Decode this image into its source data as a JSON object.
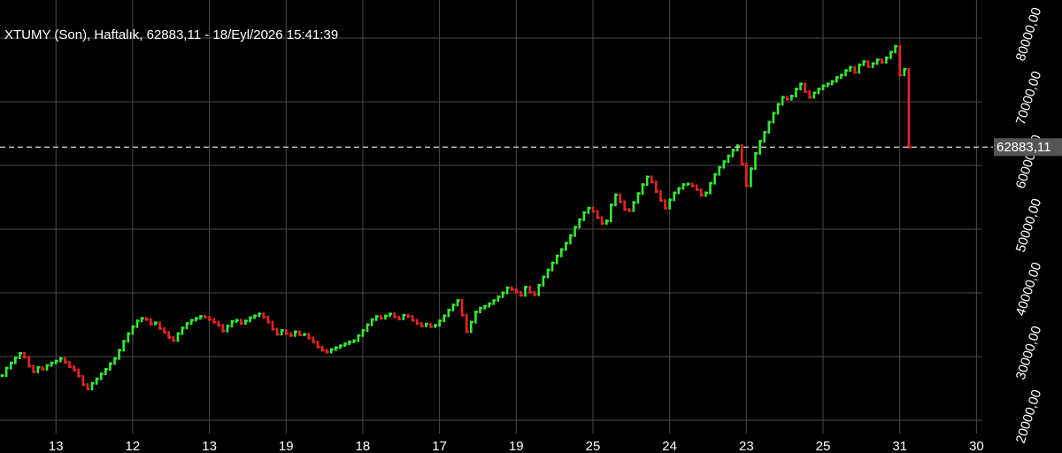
{
  "chart_data": {
    "type": "ohlc-step",
    "title": "XTUMY (Son), Haftalık, 62883,11 - 18/Eyl/2026 15:41:39",
    "values": [
      27000,
      28200,
      29000,
      29800,
      30500,
      29900,
      28500,
      27600,
      28300,
      28000,
      28600,
      29000,
      29300,
      29700,
      29100,
      28400,
      27900,
      26900,
      25600,
      24900,
      25800,
      26500,
      27300,
      28000,
      28900,
      29700,
      31000,
      32400,
      33600,
      34700,
      35600,
      36000,
      35800,
      35100,
      35300,
      34400,
      33800,
      33000,
      32500,
      33600,
      34500,
      35200,
      35700,
      36000,
      36300,
      36200,
      35800,
      35400,
      34900,
      34000,
      34800,
      35500,
      35700,
      35200,
      35600,
      36100,
      36400,
      36700,
      36200,
      35400,
      34300,
      33500,
      34100,
      33600,
      33300,
      33900,
      33400,
      33500,
      32900,
      32300,
      31500,
      31000,
      30700,
      31100,
      31400,
      31700,
      32000,
      32300,
      32500,
      33300,
      34100,
      35000,
      35800,
      36300,
      36000,
      36400,
      36700,
      36200,
      35900,
      36500,
      36300,
      35700,
      35200,
      34800,
      35100,
      34700,
      34900,
      35600,
      36400,
      37300,
      38100,
      38800,
      36500,
      33900,
      35400,
      37000,
      37600,
      37900,
      38300,
      38800,
      39400,
      40000,
      40800,
      40500,
      40100,
      39600,
      40900,
      40100,
      39700,
      41200,
      42500,
      43600,
      44700,
      45800,
      46800,
      47800,
      49000,
      50300,
      51500,
      52600,
      53300,
      52800,
      51800,
      50900,
      51300,
      53800,
      55400,
      54300,
      53100,
      52900,
      54200,
      55600,
      57000,
      58200,
      57400,
      55900,
      54500,
      53300,
      54600,
      55700,
      56400,
      57000,
      57100,
      56800,
      56200,
      55300,
      55700,
      57200,
      58600,
      59700,
      60600,
      61500,
      62400,
      63100,
      60200,
      56800,
      59500,
      61900,
      63800,
      65200,
      66800,
      68200,
      69600,
      70700,
      70400,
      70900,
      72000,
      72800,
      71600,
      70700,
      71400,
      72000,
      72500,
      72800,
      73200,
      73800,
      74200,
      74900,
      75400,
      74600,
      75800,
      76300,
      75500,
      76000,
      76600,
      76200,
      76900,
      77800,
      78700,
      74200,
      75100,
      62883.11
    ],
    "last_label": "62883,11",
    "up_color": "#33ee33",
    "down_color": "#ee2222",
    "grid": true,
    "xlim": [
      -0.4,
      217.3
    ],
    "xticks": [
      {
        "value": 12,
        "label": "13"
      },
      {
        "value": 29,
        "label": "12"
      },
      {
        "value": 46,
        "label": "13"
      },
      {
        "value": 63,
        "label": "19"
      },
      {
        "value": 80,
        "label": "18"
      },
      {
        "value": 97,
        "label": "17"
      },
      {
        "value": 114,
        "label": "19"
      },
      {
        "value": 131,
        "label": "25"
      },
      {
        "value": 148,
        "label": "24"
      },
      {
        "value": 165,
        "label": "23"
      },
      {
        "value": 182,
        "label": "25"
      },
      {
        "value": 199,
        "label": "31"
      },
      {
        "value": 216,
        "label": "30"
      }
    ],
    "ylim": [
      14860,
      85970
    ],
    "yticks": [
      {
        "value": 20000,
        "label": "20000,00"
      },
      {
        "value": 30000,
        "label": "30000,00"
      },
      {
        "value": 40000,
        "label": "40000,00"
      },
      {
        "value": 50000,
        "label": "50000,00"
      },
      {
        "value": 60000,
        "label": "60000,00"
      },
      {
        "value": 70000,
        "label": "70000,00"
      },
      {
        "value": 80000,
        "label": "80000,00"
      }
    ]
  }
}
